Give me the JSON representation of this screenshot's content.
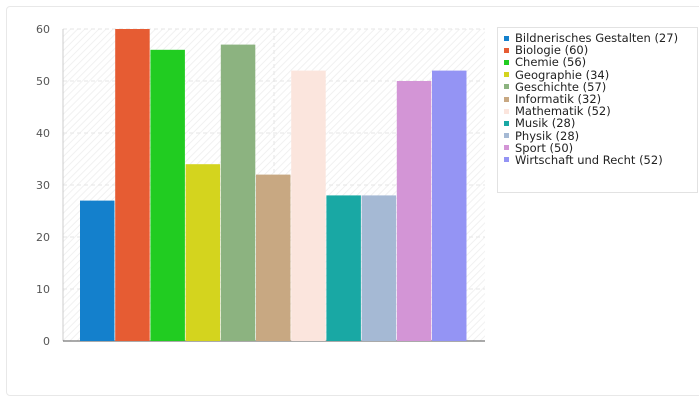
{
  "chart_data": {
    "type": "bar",
    "title": "",
    "xlabel": "",
    "ylabel": "",
    "ylim": [
      0,
      60
    ],
    "yticks": [
      0,
      10,
      20,
      30,
      40,
      50,
      60
    ],
    "grid": true,
    "legend_position": "right",
    "categories": [
      "Bildnerisches Gestalten",
      "Biologie",
      "Chemie",
      "Geographie",
      "Geschichte",
      "Informatik",
      "Mathematik",
      "Musik",
      "Physik",
      "Sport",
      "Wirtschaft und Recht"
    ],
    "values": [
      27,
      60,
      56,
      34,
      57,
      32,
      52,
      28,
      28,
      50,
      52
    ],
    "colors": [
      "#1480cc",
      "#e65c33",
      "#21cc21",
      "#d4d41e",
      "#8cb380",
      "#c8a882",
      "#fbe5dd",
      "#19a8a4",
      "#a5b9d4",
      "#d395d6",
      "#9494f4"
    ],
    "legend_labels": [
      "Bildnerisches Gestalten (27)",
      "Biologie (60)",
      "Chemie (56)",
      "Geographie (34)",
      "Geschichte (57)",
      "Informatik (32)",
      "Mathematik (52)",
      "Musik (28)",
      "Physik (28)",
      "Sport (50)",
      "Wirtschaft und Recht (52)"
    ]
  }
}
